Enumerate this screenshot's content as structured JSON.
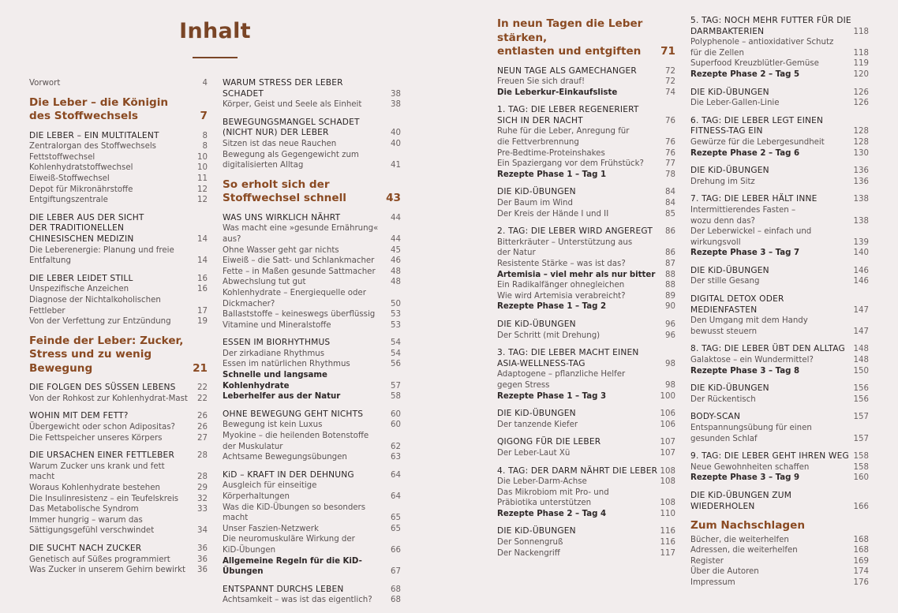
{
  "title": "Inhalt",
  "accent_color": "#7a4526",
  "columns": [
    [
      [
        {
          "k": "s",
          "t": "Vorwort",
          "p": "4"
        }
      ],
      [
        {
          "k": "c",
          "t": "Die Leber – die Königin\ndes Stoffwechsels",
          "p": "7"
        }
      ],
      [
        {
          "k": "h",
          "t": "DIE LEBER – EIN MULTITALENT",
          "p": "8"
        },
        {
          "k": "s",
          "t": "Zentralorgan des Stoffwechsels",
          "p": "8"
        },
        {
          "k": "s",
          "t": "Fettstoffwechsel",
          "p": "10"
        },
        {
          "k": "s",
          "t": "Kohlenhydratstoffwechsel",
          "p": "10"
        },
        {
          "k": "s",
          "t": "Eiweiß-Stoffwechsel",
          "p": "11"
        },
        {
          "k": "s",
          "t": "Depot für Mikronährstoffe",
          "p": "12"
        },
        {
          "k": "s",
          "t": "Entgiftungszentrale",
          "p": "12"
        }
      ],
      [
        {
          "k": "h",
          "t": "DIE LEBER AUS DER SICHT\nDER TRADITIONELLEN\nCHINESISCHEN MEDIZIN",
          "p": "14"
        },
        {
          "k": "s",
          "t": "Die Leberenergie: Planung und freie\nEntfaltung",
          "p": "14"
        }
      ],
      [
        {
          "k": "h",
          "t": "DIE LEBER LEIDET STILL",
          "p": "16"
        },
        {
          "k": "s",
          "t": "Unspezifische Anzeichen",
          "p": "16"
        },
        {
          "k": "s",
          "t": "Diagnose der Nichtalkoholischen Fettleber",
          "p": "17"
        },
        {
          "k": "s",
          "t": "Von der Verfettung zur Entzündung",
          "p": "19"
        }
      ],
      [
        {
          "k": "c",
          "t": "Feinde der Leber: Zucker,\nStress und zu wenig Bewegung",
          "p": "21"
        }
      ],
      [
        {
          "k": "h",
          "t": "DIE FOLGEN DES SÜSSEN LEBENS",
          "p": "22"
        },
        {
          "k": "s",
          "t": "Von der Rohkost zur Kohlenhydrat-Mast",
          "p": "22"
        }
      ],
      [
        {
          "k": "h",
          "t": "WOHIN MIT DEM FETT?",
          "p": "26"
        },
        {
          "k": "s",
          "t": "Übergewicht oder schon Adipositas?",
          "p": "26"
        },
        {
          "k": "s",
          "t": "Die Fettspeicher unseres Körpers",
          "p": "27"
        }
      ],
      [
        {
          "k": "h",
          "t": "DIE URSACHEN EINER FETTLEBER",
          "p": "28"
        },
        {
          "k": "s",
          "t": "Warum Zucker uns krank und fett macht",
          "p": "28"
        },
        {
          "k": "s",
          "t": "Woraus Kohlenhydrate bestehen",
          "p": "29"
        },
        {
          "k": "s",
          "t": "Die Insulinresistenz – ein Teufelskreis",
          "p": "32"
        },
        {
          "k": "s",
          "t": "Das Metabolische Syndrom",
          "p": "33"
        },
        {
          "k": "s",
          "t": "Immer hungrig – warum das\nSättigungsgefühl verschwindet",
          "p": "34"
        }
      ],
      [
        {
          "k": "h",
          "t": "DIE SUCHT NACH ZUCKER",
          "p": "36"
        },
        {
          "k": "s",
          "t": "Genetisch auf Süßes programmiert",
          "p": "36"
        },
        {
          "k": "s",
          "t": "Was Zucker in unserem Gehirn bewirkt",
          "p": "36"
        }
      ]
    ],
    [
      [
        {
          "k": "h",
          "t": "WARUM STRESS DER LEBER SCHADET",
          "p": "38"
        },
        {
          "k": "s",
          "t": "Körper, Geist und Seele als Einheit",
          "p": "38"
        }
      ],
      [
        {
          "k": "h",
          "t": "BEWEGUNGSMANGEL SCHADET\n(NICHT NUR) DER LEBER",
          "p": "40"
        },
        {
          "k": "s",
          "t": "Sitzen ist das neue Rauchen",
          "p": "40"
        },
        {
          "k": "s",
          "t": "Bewegung als Gegengewicht zum\ndigitalisierten Alltag",
          "p": "41"
        }
      ],
      [
        {
          "k": "c",
          "t": "So erholt sich der\nStoffwechsel schnell",
          "p": "43"
        }
      ],
      [
        {
          "k": "h",
          "t": "WAS UNS WIRKLICH NÄHRT",
          "p": "44"
        },
        {
          "k": "s",
          "t": "Was macht eine »gesunde Ernährung« aus?",
          "p": "44"
        },
        {
          "k": "s",
          "t": "Ohne Wasser geht gar nichts",
          "p": "45"
        },
        {
          "k": "s",
          "t": "Eiweiß – die Satt- und Schlankmacher",
          "p": "46"
        },
        {
          "k": "s",
          "t": "Fette – in Maßen gesunde Sattmacher",
          "p": "48"
        },
        {
          "k": "s",
          "t": "Abwechslung tut gut",
          "p": "48"
        },
        {
          "k": "s",
          "t": "Kohlenhydrate – Energiequelle oder\nDickmacher?",
          "p": "50"
        },
        {
          "k": "s",
          "t": "Ballaststoffe – keineswegs überflüssig",
          "p": "53"
        },
        {
          "k": "s",
          "t": "Vitamine und Mineralstoffe",
          "p": "53"
        }
      ],
      [
        {
          "k": "h",
          "t": "ESSEN IM BIORHYTHMUS",
          "p": "54"
        },
        {
          "k": "s",
          "t": "Der zirkadiane Rhythmus",
          "p": "54"
        },
        {
          "k": "s",
          "t": "Essen im natürlichen Rhythmus",
          "p": "56"
        },
        {
          "k": "b",
          "t": "Schnelle und langsame Kohlenhydrate",
          "p": "57"
        },
        {
          "k": "b",
          "t": "Leberhelfer aus der Natur",
          "p": "58"
        }
      ],
      [
        {
          "k": "h",
          "t": "OHNE BEWEGUNG GEHT NICHTS",
          "p": "60"
        },
        {
          "k": "s",
          "t": "Bewegung ist kein Luxus",
          "p": "60"
        },
        {
          "k": "s",
          "t": "Myokine – die heilenden Botenstoffe\nder Muskulatur",
          "p": "62"
        },
        {
          "k": "s",
          "t": "Achtsame Bewegungsübungen",
          "p": "63"
        }
      ],
      [
        {
          "k": "h",
          "t": "KiD – KRAFT IN DER DEHNUNG",
          "p": "64"
        },
        {
          "k": "s",
          "t": "Ausgleich für einseitige Körperhaltungen",
          "p": "64"
        },
        {
          "k": "s",
          "t": "Was die KiD-Übungen so besonders macht",
          "p": "65"
        },
        {
          "k": "s",
          "t": "Unser Faszien-Netzwerk",
          "p": "65"
        },
        {
          "k": "s",
          "t": "Die neuromuskuläre Wirkung der\nKiD-Übungen",
          "p": "66"
        },
        {
          "k": "b",
          "t": "Allgemeine Regeln für die KiD-Übungen",
          "p": "67"
        }
      ],
      [
        {
          "k": "h",
          "t": "ENTSPANNT DURCHS LEBEN",
          "p": "68"
        },
        {
          "k": "s",
          "t": "Achtsamkeit – was ist das eigentlich?",
          "p": "68"
        }
      ]
    ],
    [
      [
        {
          "k": "c",
          "t": "In neun Tagen die Leber stärken,\nentlasten und entgiften",
          "p": "71"
        }
      ],
      [
        {
          "k": "h",
          "t": "NEUN TAGE ALS GAMECHANGER",
          "p": "72"
        },
        {
          "k": "s",
          "t": "Freuen Sie sich drauf!",
          "p": "72"
        },
        {
          "k": "b",
          "t": "Die Leberkur-Einkaufsliste",
          "p": "74"
        }
      ],
      [
        {
          "k": "h",
          "t": "1. TAG: DIE LEBER REGENERIERT\nSICH IN DER NACHT",
          "p": "76"
        },
        {
          "k": "s",
          "t": "Ruhe für die Leber, Anregung für\ndie Fettverbrennung",
          "p": "76"
        },
        {
          "k": "s",
          "t": "Pre-Bedtime-Proteinshakes",
          "p": "76"
        },
        {
          "k": "s",
          "t": "Ein Spaziergang vor dem Frühstück?",
          "p": "77"
        },
        {
          "k": "b",
          "t": "Rezepte Phase 1 – Tag 1",
          "p": "78"
        }
      ],
      [
        {
          "k": "h",
          "t": "DIE KiD-ÜBUNGEN",
          "p": "84"
        },
        {
          "k": "s",
          "t": "Der Baum im Wind",
          "p": "84"
        },
        {
          "k": "s",
          "t": "Der Kreis der Hände I und II",
          "p": "85"
        }
      ],
      [
        {
          "k": "h",
          "t": "2. TAG: DIE LEBER WIRD ANGEREGT",
          "p": "86"
        },
        {
          "k": "s",
          "t": "Bitterkräuter – Unterstützung aus\nder Natur",
          "p": "86"
        },
        {
          "k": "s",
          "t": "Resistente Stärke – was ist das?",
          "p": "87"
        },
        {
          "k": "b",
          "t": "Artemisia – viel mehr als nur bitter",
          "p": "88"
        },
        {
          "k": "s",
          "t": "Ein Radikalfänger ohnegleichen",
          "p": "88"
        },
        {
          "k": "s",
          "t": "Wie wird Artemisia verabreicht?",
          "p": "89"
        },
        {
          "k": "b",
          "t": "Rezepte Phase 1 – Tag 2",
          "p": "90"
        }
      ],
      [
        {
          "k": "h",
          "t": "DIE KiD-ÜBUNGEN",
          "p": "96"
        },
        {
          "k": "s",
          "t": "Der Schritt (mit Drehung)",
          "p": "96"
        }
      ],
      [
        {
          "k": "h",
          "t": "3. TAG: DIE LEBER MACHT EINEN\nASIA-WELLNESS-TAG",
          "p": "98"
        },
        {
          "k": "s",
          "t": "Adaptogene – pflanzliche Helfer\ngegen Stress",
          "p": "98"
        },
        {
          "k": "b",
          "t": "Rezepte Phase 1 – Tag 3",
          "p": "100"
        }
      ],
      [
        {
          "k": "h",
          "t": "DIE KiD-ÜBUNGEN",
          "p": "106"
        },
        {
          "k": "s",
          "t": "Der tanzende Kiefer",
          "p": "106"
        }
      ],
      [
        {
          "k": "h",
          "t": "QIGONG FÜR DIE LEBER",
          "p": "107"
        },
        {
          "k": "s",
          "t": "Der Leber-Laut Xü",
          "p": "107"
        }
      ],
      [
        {
          "k": "h",
          "t": "4. TAG: DER DARM NÄHRT DIE LEBER",
          "p": "108"
        },
        {
          "k": "s",
          "t": "Die Leber-Darm-Achse",
          "p": "108"
        },
        {
          "k": "s",
          "t": "Das Mikrobiom mit Pro- und\nPräbiotika unterstützen",
          "p": "108"
        },
        {
          "k": "b",
          "t": "Rezepte Phase 2 – Tag 4",
          "p": "110"
        }
      ],
      [
        {
          "k": "h",
          "t": "DIE KiD-ÜBUNGEN",
          "p": "116"
        },
        {
          "k": "s",
          "t": "Der Sonnengruß",
          "p": "116"
        },
        {
          "k": "s",
          "t": "Der Nackengriff",
          "p": "117"
        }
      ]
    ],
    [
      [
        {
          "k": "h",
          "t": "5. TAG: NOCH MEHR FUTTER FÜR DIE\nDARMBAKTERIEN",
          "p": "118"
        },
        {
          "k": "s",
          "t": "Polyphenole – antioxidativer Schutz\nfür die Zellen",
          "p": "118"
        },
        {
          "k": "s",
          "t": "Superfood Kreuzblütler-Gemüse",
          "p": "119"
        },
        {
          "k": "b",
          "t": "Rezepte Phase 2 – Tag 5",
          "p": "120"
        }
      ],
      [
        {
          "k": "h",
          "t": "DIE KiD-ÜBUNGEN",
          "p": "126"
        },
        {
          "k": "s",
          "t": "Die Leber-Gallen-Linie",
          "p": "126"
        }
      ],
      [
        {
          "k": "h",
          "t": "6. TAG: DIE LEBER LEGT EINEN\nFITNESS-TAG EIN",
          "p": "128"
        },
        {
          "k": "s",
          "t": "Gewürze für die Lebergesundheit",
          "p": "128"
        },
        {
          "k": "b",
          "t": "Rezepte Phase 2 – Tag 6",
          "p": "130"
        }
      ],
      [
        {
          "k": "h",
          "t": "DIE KiD-ÜBUNGEN",
          "p": "136"
        },
        {
          "k": "s",
          "t": "Drehung im Sitz",
          "p": "136"
        }
      ],
      [
        {
          "k": "h",
          "t": "7. TAG: DIE LEBER HÄLT INNE",
          "p": "138"
        },
        {
          "k": "s",
          "t": "Intermittierendes Fasten –\nwozu denn das?",
          "p": "138"
        },
        {
          "k": "s",
          "t": "Der Leberwickel – einfach und\nwirkungsvoll",
          "p": "139"
        },
        {
          "k": "b",
          "t": "Rezepte Phase 3 – Tag 7",
          "p": "140"
        }
      ],
      [
        {
          "k": "h",
          "t": "DIE KiD-ÜBUNGEN",
          "p": "146"
        },
        {
          "k": "s",
          "t": "Der stille Gesang",
          "p": "146"
        }
      ],
      [
        {
          "k": "h",
          "t": "DIGITAL DETOX ODER MEDIENFASTEN",
          "p": "147"
        },
        {
          "k": "s",
          "t": "Den Umgang mit dem Handy\nbewusst steuern",
          "p": "147"
        }
      ],
      [
        {
          "k": "h",
          "t": "8. TAG: DIE LEBER ÜBT DEN ALLTAG",
          "p": "148"
        },
        {
          "k": "s",
          "t": "Galaktose – ein Wundermittel?",
          "p": "148"
        },
        {
          "k": "b",
          "t": "Rezepte Phase 3 – Tag 8",
          "p": "150"
        }
      ],
      [
        {
          "k": "h",
          "t": "DIE KiD-ÜBUNGEN",
          "p": "156"
        },
        {
          "k": "s",
          "t": "Der Rückentisch",
          "p": "156"
        }
      ],
      [
        {
          "k": "h",
          "t": "BODY-SCAN",
          "p": "157"
        },
        {
          "k": "s",
          "t": "Entspannungsübung für einen\ngesunden Schlaf",
          "p": "157"
        }
      ],
      [
        {
          "k": "h",
          "t": "9. TAG: DIE LEBER GEHT IHREN WEG",
          "p": "158"
        },
        {
          "k": "s",
          "t": "Neue Gewohnheiten schaffen",
          "p": "158"
        },
        {
          "k": "b",
          "t": "Rezepte Phase 3 – Tag 9",
          "p": "160"
        }
      ],
      [
        {
          "k": "h",
          "t": "DIE KiD-ÜBUNGEN ZUM WIEDERHOLEN",
          "p": "166"
        }
      ],
      [
        {
          "k": "c",
          "t": "Zum Nachschlagen",
          "p": ""
        },
        {
          "k": "s",
          "t": "Bücher, die weiterhelfen",
          "p": "168"
        },
        {
          "k": "s",
          "t": "Adressen, die weiterhelfen",
          "p": "168"
        },
        {
          "k": "s",
          "t": "Register",
          "p": "169"
        },
        {
          "k": "s",
          "t": "Über die Autoren",
          "p": "174"
        },
        {
          "k": "s",
          "t": "Impressum",
          "p": "176"
        }
      ]
    ]
  ]
}
